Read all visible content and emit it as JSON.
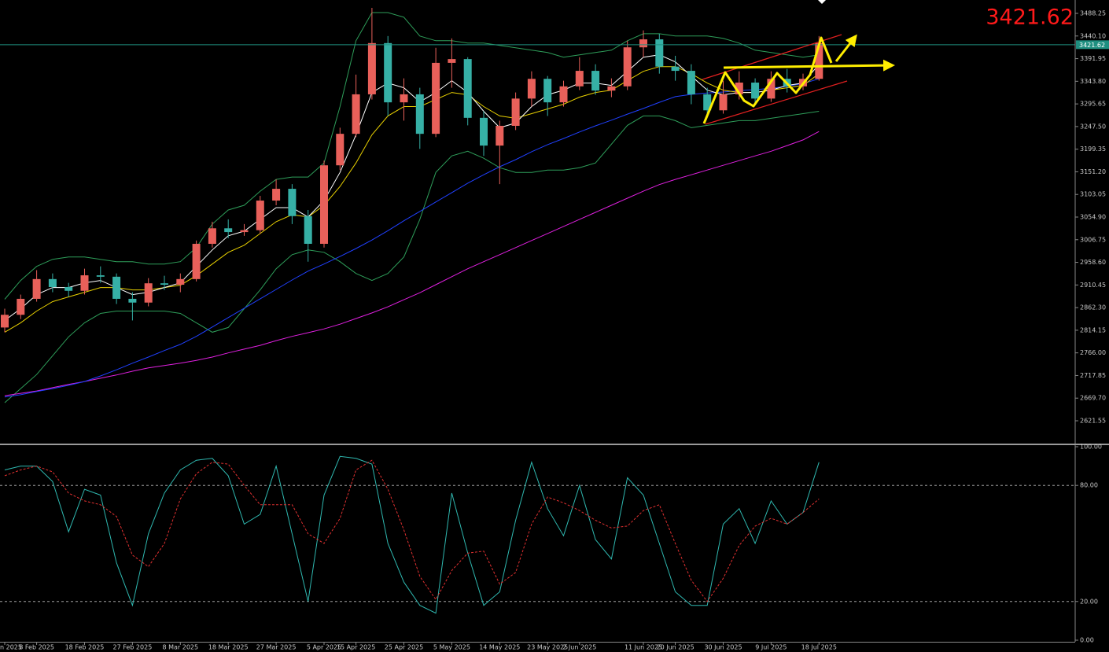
{
  "chart_data": [
    {
      "type": "candlestick",
      "categories": [
        "n 2025",
        null,
        "8 Feb 2025",
        null,
        null,
        "18 Feb 2025",
        null,
        null,
        "27 Feb 2025",
        null,
        null,
        "8 Mar 2025",
        null,
        null,
        "18 Mar 2025",
        null,
        null,
        "27 Mar 2025",
        null,
        null,
        "5 Apr 2025",
        null,
        "15 Apr 2025",
        null,
        null,
        "25 Apr 2025",
        null,
        null,
        "5 May 2025",
        null,
        null,
        "14 May 2025",
        null,
        null,
        "23 May 2025",
        null,
        "2 Jun 2025",
        null,
        null,
        null,
        "11 Jun 2025",
        null,
        "20 Jun 2025",
        null,
        null,
        "30 Jun 2025",
        null,
        null,
        "9 Jul 2025",
        null,
        null,
        "18 Jul 2025"
      ],
      "open": [
        2820,
        2847,
        2881,
        2923,
        2906,
        2898,
        2931,
        2928,
        2881,
        2873,
        2914,
        2911,
        2923,
        2998,
        3031,
        3023,
        3027,
        3090,
        3115,
        3057,
        2998,
        3165,
        3232,
        3316,
        3425,
        3299,
        3316,
        3232,
        3383,
        3391,
        3266,
        3207,
        3249,
        3307,
        3349,
        3299,
        3333,
        3366,
        3324,
        3333,
        3416,
        3433,
        3375,
        3366,
        3316,
        3282,
        3316,
        3341,
        3307,
        3349,
        3333,
        3349
      ],
      "high": [
        2860,
        2890,
        2942,
        2935,
        2915,
        2945,
        2950,
        2935,
        2895,
        2925,
        2930,
        2935,
        3005,
        3045,
        3050,
        3040,
        3100,
        3135,
        3125,
        3070,
        3175,
        3245,
        3358,
        3500,
        3440,
        3350,
        3330,
        3415,
        3435,
        3395,
        3280,
        3260,
        3320,
        3365,
        3355,
        3345,
        3395,
        3380,
        3350,
        3430,
        3452,
        3445,
        3398,
        3380,
        3330,
        3345,
        3365,
        3350,
        3365,
        3370,
        3360,
        3440
      ],
      "low": [
        2810,
        2838,
        2875,
        2895,
        2885,
        2890,
        2915,
        2870,
        2835,
        2865,
        2900,
        2895,
        2918,
        2990,
        3010,
        3015,
        3020,
        3080,
        3040,
        2960,
        2990,
        3155,
        3225,
        3305,
        3270,
        3260,
        3200,
        3225,
        3330,
        3250,
        3185,
        3125,
        3240,
        3290,
        3270,
        3290,
        3325,
        3315,
        3310,
        3325,
        3395,
        3360,
        3345,
        3295,
        3268,
        3275,
        3305,
        3295,
        3300,
        3320,
        3325,
        3345
      ],
      "close": [
        2847,
        2881,
        2923,
        2906,
        2898,
        2931,
        2928,
        2881,
        2873,
        2914,
        2911,
        2923,
        2998,
        3031,
        3023,
        3027,
        3090,
        3115,
        3057,
        2998,
        3165,
        3232,
        3316,
        3425,
        3299,
        3316,
        3232,
        3383,
        3391,
        3266,
        3207,
        3249,
        3307,
        3349,
        3299,
        3333,
        3366,
        3324,
        3333,
        3416,
        3433,
        3375,
        3366,
        3316,
        3282,
        3316,
        3341,
        3307,
        3349,
        3333,
        3349,
        3425
      ],
      "up_color": "#e8605a",
      "down_color": "#36b0a6",
      "series": [
        {
          "color": "#2e9e5a",
          "values": [
            2880,
            2920,
            2950,
            2965,
            2970,
            2970,
            2965,
            2960,
            2960,
            2955,
            2955,
            2960,
            2990,
            3040,
            3070,
            3080,
            3110,
            3135,
            3140,
            3140,
            3170,
            3290,
            3430,
            3490,
            3490,
            3480,
            3440,
            3430,
            3430,
            3425,
            3425,
            3420,
            3415,
            3410,
            3405,
            3395,
            3400,
            3405,
            3410,
            3430,
            3445,
            3445,
            3440,
            3440,
            3440,
            3435,
            3425,
            3410,
            3405,
            3400,
            3395,
            3400
          ]
        },
        {
          "color": "#2e9e5a",
          "values": [
            2660,
            2690,
            2720,
            2760,
            2800,
            2830,
            2850,
            2855,
            2855,
            2855,
            2855,
            2850,
            2830,
            2810,
            2820,
            2860,
            2900,
            2945,
            2975,
            2985,
            2980,
            2960,
            2935,
            2920,
            2935,
            2970,
            3050,
            3150,
            3185,
            3195,
            3180,
            3160,
            3150,
            3150,
            3155,
            3155,
            3160,
            3170,
            3210,
            3250,
            3270,
            3270,
            3260,
            3245,
            3250,
            3255,
            3260,
            3260,
            3265,
            3270,
            3275,
            3280
          ]
        },
        {
          "color": "#e020e0",
          "values": [
            2675,
            2680,
            2685,
            2692,
            2699,
            2705,
            2712,
            2719,
            2727,
            2734,
            2739,
            2744,
            2750,
            2757,
            2766,
            2774,
            2782,
            2792,
            2801,
            2809,
            2817,
            2827,
            2839,
            2851,
            2864,
            2879,
            2894,
            2911,
            2928,
            2945,
            2960,
            2975,
            2990,
            3005,
            3020,
            3035,
            3050,
            3065,
            3080,
            3095,
            3110,
            3124,
            3135,
            3145,
            3155,
            3165,
            3175,
            3185,
            3195,
            3207,
            3219,
            3237
          ]
        },
        {
          "color": "#2040ff",
          "values": [
            2672,
            2677,
            2684,
            2690,
            2697,
            2705,
            2717,
            2730,
            2744,
            2757,
            2771,
            2784,
            2801,
            2821,
            2841,
            2861,
            2881,
            2901,
            2921,
            2940,
            2955,
            2971,
            2988,
            3006,
            3026,
            3047,
            3067,
            3087,
            3107,
            3127,
            3145,
            3162,
            3177,
            3194,
            3209,
            3222,
            3236,
            3249,
            3261,
            3274,
            3286,
            3299,
            3311,
            3316,
            3319,
            3321,
            3324,
            3326,
            3329,
            3333,
            3339,
            3349
          ]
        },
        {
          "color": "#e8d000",
          "values": [
            2810,
            2830,
            2855,
            2875,
            2885,
            2895,
            2905,
            2905,
            2900,
            2900,
            2905,
            2910,
            2930,
            2955,
            2980,
            2995,
            3020,
            3045,
            3060,
            3055,
            3080,
            3120,
            3170,
            3230,
            3270,
            3290,
            3290,
            3305,
            3320,
            3315,
            3290,
            3270,
            3265,
            3275,
            3285,
            3295,
            3310,
            3320,
            3325,
            3345,
            3365,
            3375,
            3375,
            3360,
            3340,
            3325,
            3320,
            3320,
            3325,
            3330,
            3335,
            3360
          ]
        },
        {
          "color": "#ffffff",
          "values": [
            2835,
            2860,
            2890,
            2905,
            2905,
            2915,
            2920,
            2905,
            2890,
            2895,
            2905,
            2915,
            2950,
            2985,
            3015,
            3025,
            3050,
            3075,
            3075,
            3055,
            3090,
            3150,
            3230,
            3320,
            3340,
            3330,
            3300,
            3320,
            3345,
            3320,
            3280,
            3245,
            3255,
            3290,
            3315,
            3325,
            3340,
            3340,
            3335,
            3365,
            3395,
            3400,
            3385,
            3355,
            3325,
            3315,
            3320,
            3320,
            3325,
            3335,
            3340,
            3380
          ]
        }
      ],
      "ylim": [
        2574.7,
        3516.7
      ],
      "yticks": [
        3488.25,
        {
          "value": 3440.1,
          "label": "3440.10"
        },
        3391.95,
        {
          "value": 3343.8,
          "label": "3343.80"
        },
        3295.65,
        {
          "value": 3247.5,
          "label": "3247.50"
        },
        3199.35,
        {
          "value": 3151.2,
          "label": "3151.20"
        },
        3103.05,
        {
          "value": 3054.9,
          "label": "3054.90"
        },
        3006.75,
        {
          "value": 2958.6,
          "label": "2958.60"
        },
        2910.45,
        {
          "value": 2862.3,
          "label": "2862.30"
        },
        2814.15,
        {
          "value": 2766,
          "label": "2766.00"
        },
        2717.85,
        {
          "value": 2669.7,
          "label": "2669.70"
        },
        2621.55
      ],
      "last_price": 3421.62,
      "last_price_color": "#ff1a1a",
      "price_line_color": "#1f8f80"
    },
    {
      "type": "line",
      "series": [
        {
          "color": "#2fb8b0",
          "dash": false,
          "values": [
            88,
            90,
            90,
            82,
            56,
            78,
            75,
            40,
            18,
            55,
            76,
            88,
            93,
            94,
            85,
            60,
            65,
            90,
            55,
            20,
            75,
            95,
            94,
            91,
            50,
            30,
            18,
            14,
            76,
            45,
            18,
            25,
            62,
            92,
            68,
            54,
            80,
            52,
            42,
            84,
            75,
            50,
            25,
            18,
            18,
            60,
            68,
            50,
            72,
            60,
            66,
            92
          ]
        },
        {
          "color": "#e03030",
          "dash": true,
          "values": [
            85,
            88,
            90,
            87,
            76,
            72,
            70,
            64,
            44,
            38,
            50,
            73,
            86,
            92,
            91,
            80,
            70,
            70,
            70,
            55,
            50,
            63,
            88,
            93,
            78,
            57,
            33,
            21,
            36,
            45,
            46,
            29,
            35,
            60,
            74,
            71,
            67,
            62,
            58,
            59,
            67,
            70,
            50,
            31,
            20,
            32,
            49,
            59,
            63,
            60,
            66,
            73
          ]
        }
      ],
      "ylim": [
        0,
        100
      ],
      "yticks": [
        {
          "value": 100,
          "label": "100.00"
        },
        {
          "value": 80,
          "label": "80.00"
        },
        {
          "value": 20,
          "label": "20.00"
        },
        {
          "value": 0,
          "label": "0.00"
        }
      ]
    }
  ]
}
